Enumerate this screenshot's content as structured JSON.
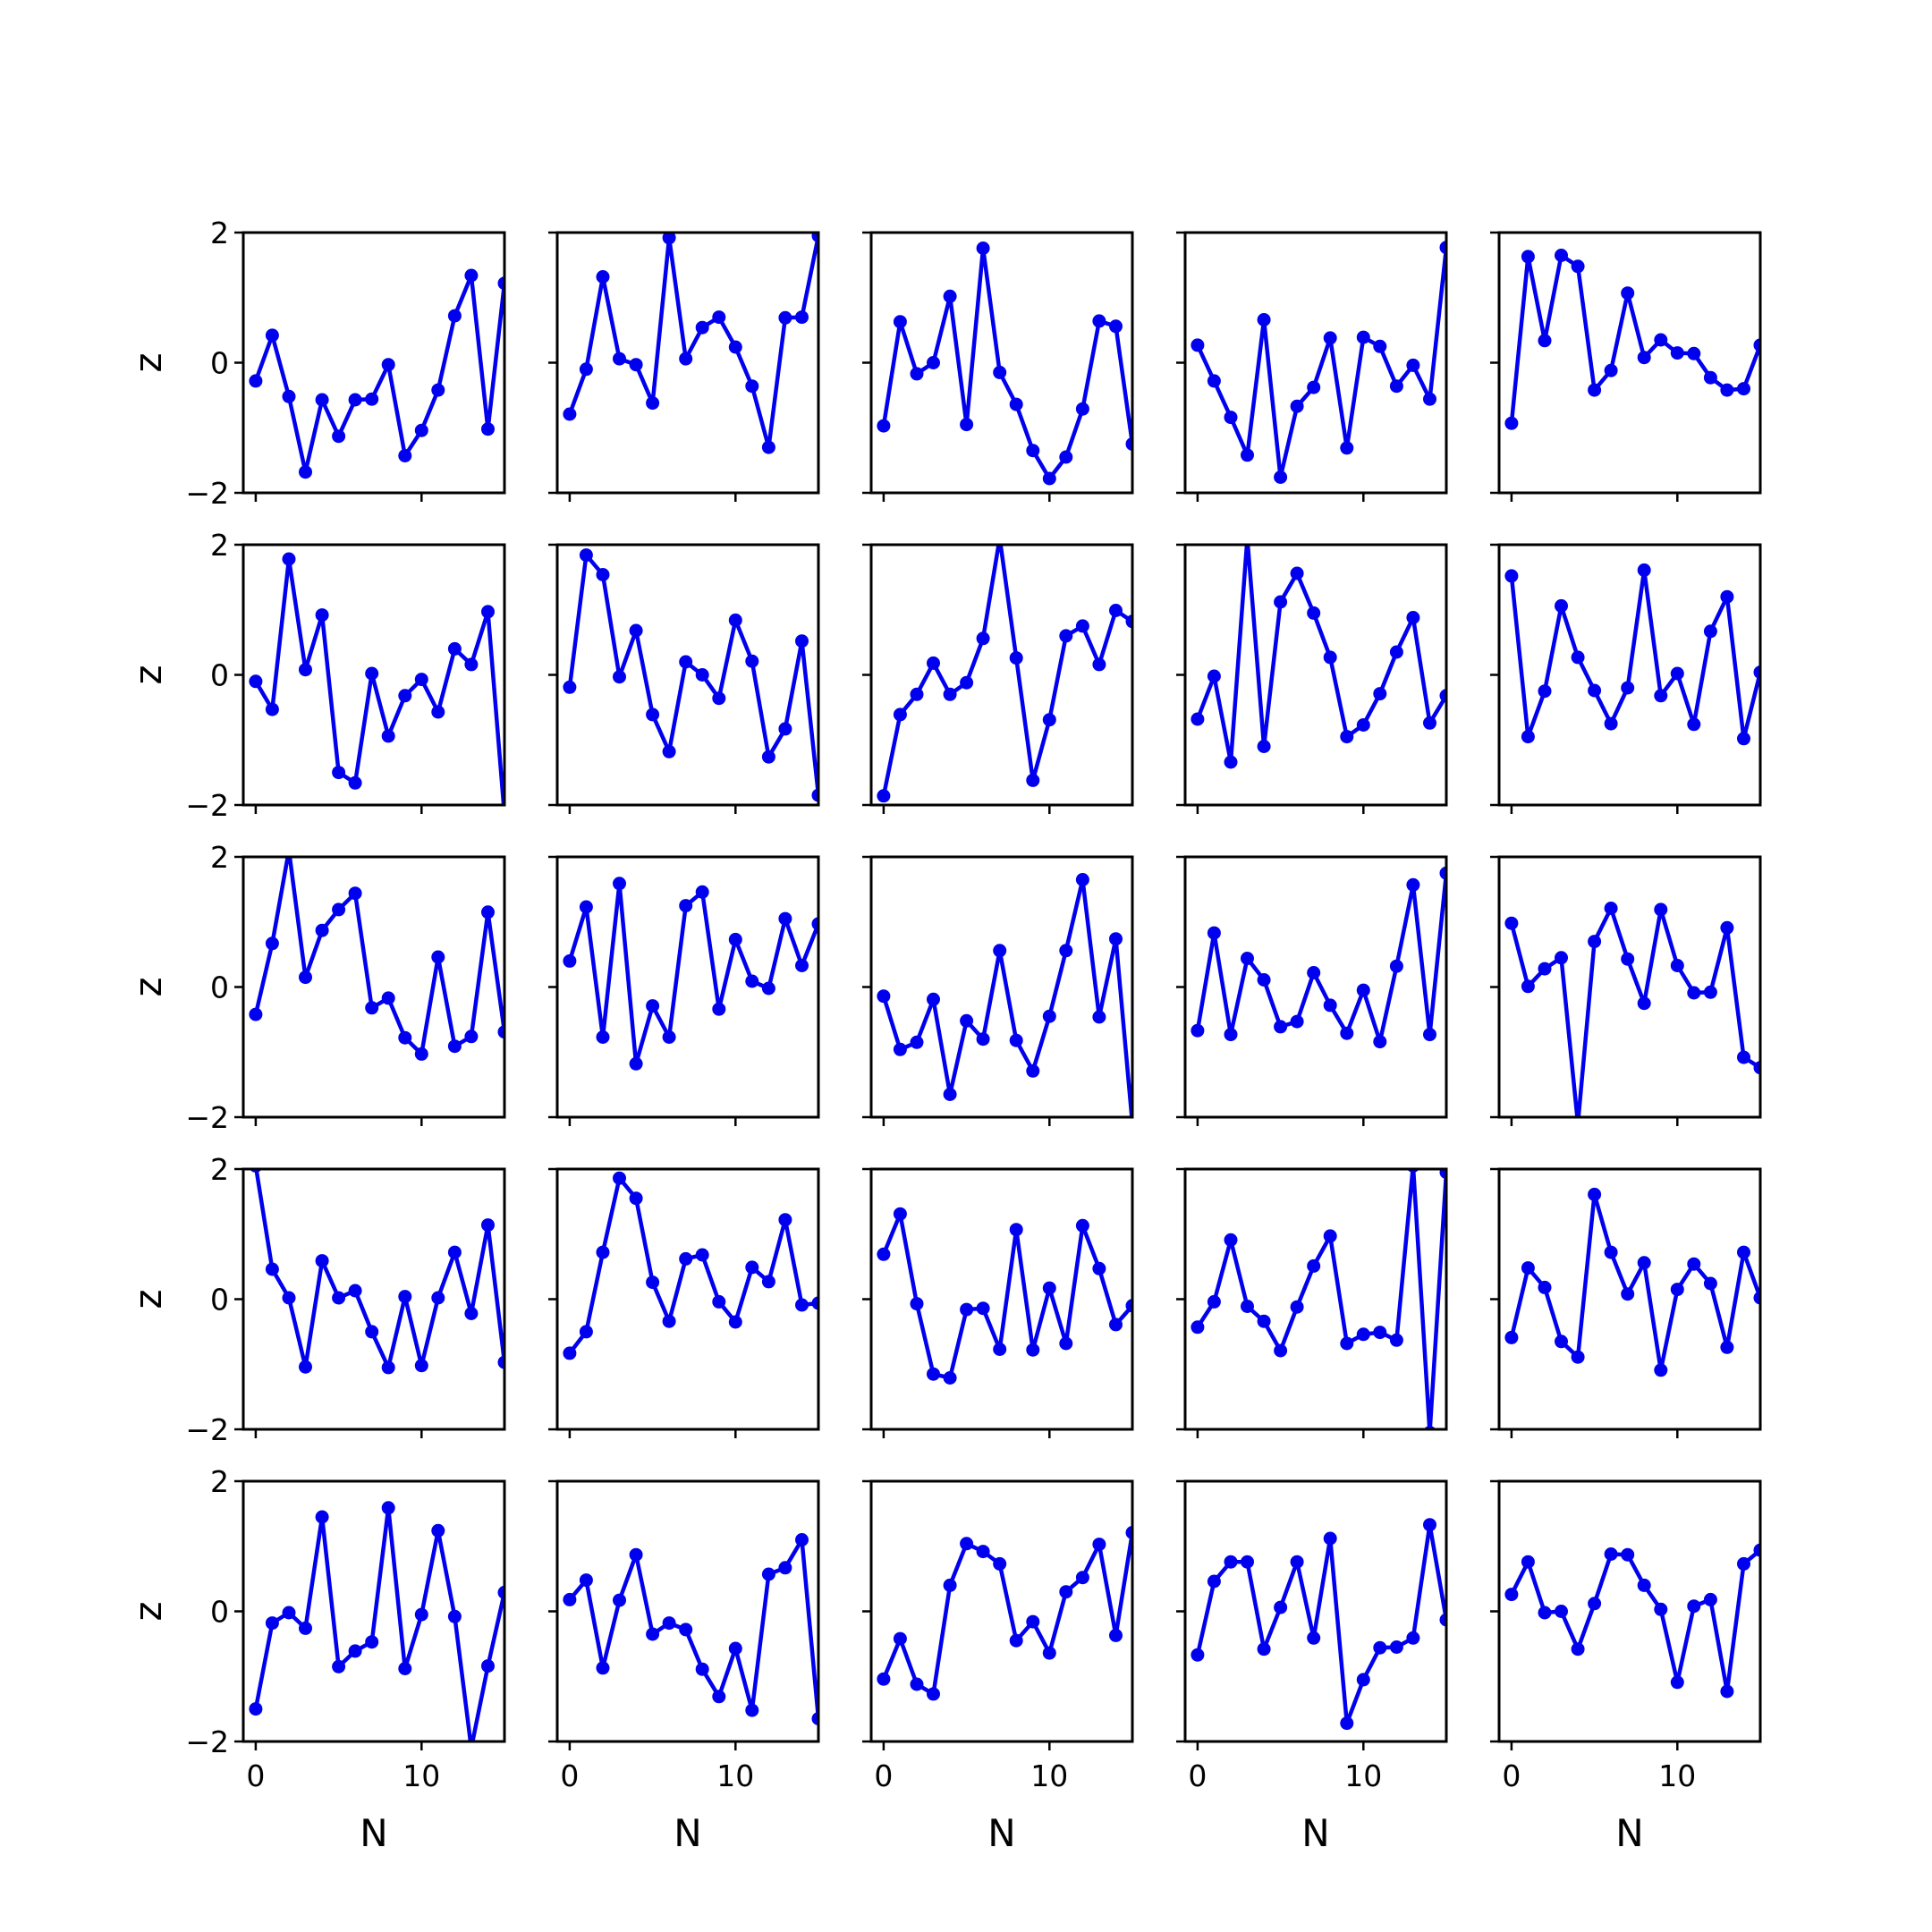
{
  "chart_data": {
    "type": "line",
    "layout": {
      "rows": 5,
      "cols": 5
    },
    "xlabel": "N",
    "ylabel": "z",
    "xlim": [
      -0.75,
      15.0
    ],
    "ylim": [
      -2,
      2
    ],
    "xticks": [
      0,
      10
    ],
    "yticks": [
      -2,
      0,
      2
    ],
    "x": [
      0,
      1,
      2,
      3,
      4,
      5,
      6,
      7,
      8,
      9,
      10,
      11,
      12,
      13,
      14,
      15
    ],
    "color": "#0000ee",
    "panels": [
      [
        -0.28,
        0.42,
        -0.52,
        -1.68,
        -0.57,
        -1.13,
        -0.57,
        -0.56,
        -0.03,
        -1.43,
        -1.04,
        -0.42,
        0.72,
        1.34,
        -1.02,
        1.22
      ],
      [
        -0.79,
        -0.1,
        1.32,
        0.06,
        -0.03,
        -0.62,
        1.92,
        0.06,
        0.54,
        0.7,
        0.24,
        -0.36,
        -1.3,
        0.69,
        0.7,
        1.95
      ],
      [
        -0.97,
        0.63,
        -0.17,
        0.0,
        1.02,
        -0.95,
        1.76,
        -0.15,
        -0.64,
        -1.35,
        -1.78,
        -1.45,
        -0.71,
        0.64,
        0.56,
        -1.25
      ],
      [
        0.27,
        -0.28,
        -0.84,
        -1.42,
        0.66,
        -1.76,
        -0.67,
        -0.38,
        0.38,
        -1.31,
        0.39,
        0.25,
        -0.36,
        -0.04,
        -0.56,
        1.77
      ],
      [
        -0.93,
        1.63,
        0.34,
        1.65,
        1.48,
        -0.42,
        -0.12,
        1.07,
        0.08,
        0.35,
        0.15,
        0.14,
        -0.23,
        -0.42,
        -0.4,
        0.27
      ],
      [
        -0.1,
        -0.53,
        1.78,
        0.08,
        0.92,
        -1.5,
        -1.66,
        0.02,
        -0.94,
        -0.32,
        -0.07,
        -0.57,
        0.4,
        0.16,
        0.97,
        -2.15
      ],
      [
        -0.19,
        1.84,
        1.54,
        -0.03,
        0.68,
        -0.61,
        -1.18,
        0.2,
        0.0,
        -0.36,
        0.84,
        0.21,
        -1.26,
        -0.83,
        0.52,
        -1.85
      ],
      [
        -1.86,
        -0.61,
        -0.3,
        0.18,
        -0.3,
        -0.12,
        0.56,
        2.1,
        0.26,
        -1.62,
        -0.69,
        0.6,
        0.75,
        0.16,
        0.99,
        0.82
      ],
      [
        -0.68,
        -0.02,
        -1.34,
        2.1,
        -1.1,
        1.12,
        1.56,
        0.95,
        0.27,
        -0.95,
        -0.77,
        -0.29,
        0.35,
        0.88,
        -0.74,
        -0.32
      ],
      [
        1.52,
        -0.95,
        -0.25,
        1.06,
        0.27,
        -0.24,
        -0.75,
        -0.2,
        1.61,
        -0.32,
        0.02,
        -0.76,
        0.67,
        1.2,
        -0.98,
        0.04
      ],
      [
        -0.42,
        0.67,
        2.1,
        0.15,
        0.87,
        1.19,
        1.44,
        -0.32,
        -0.17,
        -0.78,
        -1.03,
        0.46,
        -0.91,
        -0.76,
        1.15,
        -0.69
      ],
      [
        0.4,
        1.23,
        -0.77,
        1.59,
        -1.18,
        -0.29,
        -0.77,
        1.25,
        1.46,
        -0.34,
        0.73,
        0.09,
        -0.02,
        1.05,
        0.33,
        0.97
      ],
      [
        -0.14,
        -0.96,
        -0.85,
        -0.19,
        -1.65,
        -0.52,
        -0.8,
        0.56,
        -0.82,
        -1.29,
        -0.45,
        0.56,
        1.65,
        -0.46,
        0.74,
        -2.1
      ],
      [
        -0.67,
        0.83,
        -0.73,
        0.44,
        0.11,
        -0.61,
        -0.53,
        0.22,
        -0.28,
        -0.71,
        -0.05,
        -0.84,
        0.32,
        1.57,
        -0.73,
        1.75
      ],
      [
        0.98,
        0.01,
        0.28,
        0.45,
        -2.1,
        0.7,
        1.21,
        0.43,
        -0.25,
        1.19,
        0.33,
        -0.09,
        -0.08,
        0.91,
        -1.08,
        -1.24
      ],
      [
        2.05,
        0.46,
        0.02,
        -1.04,
        0.59,
        0.02,
        0.13,
        -0.5,
        -1.05,
        0.04,
        -1.02,
        0.02,
        0.72,
        -0.22,
        1.14,
        -0.97
      ],
      [
        -0.83,
        -0.5,
        0.72,
        1.86,
        1.55,
        0.26,
        -0.34,
        0.62,
        0.68,
        -0.04,
        -0.35,
        0.49,
        0.27,
        1.22,
        -0.09,
        -0.06
      ],
      [
        0.69,
        1.31,
        -0.07,
        -1.15,
        -1.21,
        -0.16,
        -0.14,
        -0.77,
        1.07,
        -0.78,
        0.17,
        -0.68,
        1.13,
        0.47,
        -0.39,
        -0.1
      ],
      [
        -0.43,
        -0.04,
        0.91,
        -0.11,
        -0.34,
        -0.79,
        -0.12,
        0.51,
        0.97,
        -0.68,
        -0.54,
        -0.51,
        -0.63,
        2.05,
        -2.05,
        1.95
      ],
      [
        -0.59,
        0.48,
        0.18,
        -0.65,
        -0.89,
        1.61,
        0.72,
        0.08,
        0.56,
        -1.09,
        0.15,
        0.54,
        0.24,
        -0.74,
        0.72,
        0.02
      ],
      [
        -1.5,
        -0.18,
        -0.02,
        -0.26,
        1.45,
        -0.85,
        -0.61,
        -0.47,
        1.59,
        -0.88,
        -0.05,
        1.24,
        -0.08,
        -2.1,
        -0.84,
        0.29
      ],
      [
        0.18,
        0.48,
        -0.87,
        0.17,
        0.87,
        -0.35,
        -0.18,
        -0.28,
        -0.89,
        -1.31,
        -0.57,
        -1.52,
        0.57,
        0.67,
        1.1,
        -1.65
      ],
      [
        -1.04,
        -0.42,
        -1.12,
        -1.27,
        0.4,
        1.04,
        0.92,
        0.73,
        -0.45,
        -0.16,
        -0.64,
        0.3,
        0.52,
        1.03,
        -0.37,
        1.21
      ],
      [
        -0.67,
        0.46,
        0.76,
        0.76,
        -0.58,
        0.06,
        0.76,
        -0.41,
        1.12,
        -1.72,
        -1.05,
        -0.56,
        -0.55,
        -0.41,
        1.33,
        -0.13
      ],
      [
        0.26,
        0.76,
        -0.02,
        0.0,
        -0.58,
        0.12,
        0.88,
        0.87,
        0.4,
        0.03,
        -1.09,
        0.08,
        0.18,
        -1.23,
        0.73,
        0.94
      ]
    ]
  }
}
